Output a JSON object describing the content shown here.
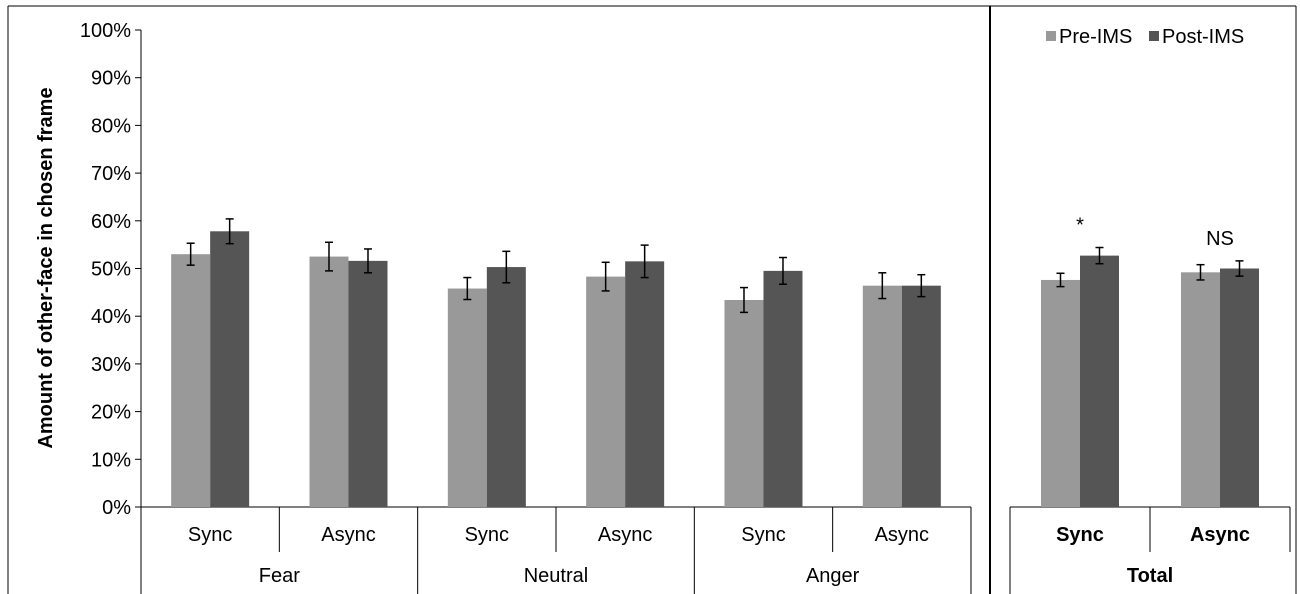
{
  "chart_data": {
    "type": "bar",
    "ylabel": "Amount of other-face in chosen frame",
    "ylim": [
      0,
      100
    ],
    "y_ticks": [
      "0%",
      "10%",
      "20%",
      "30%",
      "40%",
      "50%",
      "60%",
      "70%",
      "80%",
      "90%",
      "100%"
    ],
    "legend": {
      "placement": "top-right",
      "entries": [
        "Pre-IMS",
        "Post-IMS"
      ]
    },
    "colors": {
      "Pre-IMS": "#999999",
      "Post-IMS": "#555555",
      "axis": "#000000"
    },
    "grid": false,
    "panels": [
      {
        "groups": [
          {
            "label": "Fear",
            "subcategories": [
              "Sync",
              "Async"
            ]
          },
          {
            "label": "Neutral",
            "subcategories": [
              "Sync",
              "Async"
            ]
          },
          {
            "label": "Anger",
            "subcategories": [
              "Sync",
              "Async"
            ]
          }
        ],
        "series": [
          {
            "name": "Pre-IMS",
            "values": [
              53.0,
              52.5,
              45.8,
              48.3,
              43.4,
              46.4
            ],
            "errors": [
              2.3,
              3.0,
              2.3,
              3.0,
              2.6,
              2.7
            ]
          },
          {
            "name": "Post-IMS",
            "values": [
              57.8,
              51.6,
              50.3,
              51.5,
              49.5,
              46.4
            ],
            "errors": [
              2.6,
              2.5,
              3.3,
              3.4,
              2.8,
              2.3
            ]
          }
        ],
        "annotations": []
      },
      {
        "groups": [
          {
            "label": "Total",
            "subcategories": [
              "Sync",
              "Async"
            ]
          }
        ],
        "bold_labels": true,
        "series": [
          {
            "name": "Pre-IMS",
            "values": [
              47.6,
              49.2
            ],
            "errors": [
              1.4,
              1.6
            ]
          },
          {
            "name": "Post-IMS",
            "values": [
              52.7,
              50.0
            ],
            "errors": [
              1.7,
              1.6
            ]
          }
        ],
        "annotations": [
          "*",
          "NS"
        ]
      }
    ]
  }
}
